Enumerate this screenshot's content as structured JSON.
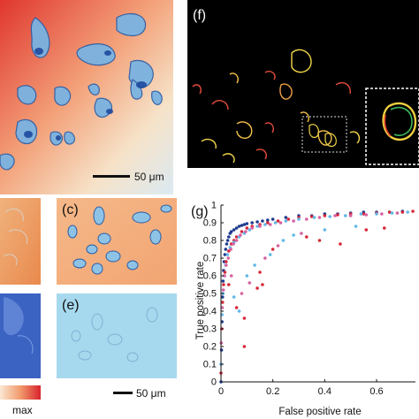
{
  "figure": {
    "panels": {
      "c": "(c)",
      "e": "(e)",
      "f": "(f)",
      "g": "(g)"
    },
    "scale_bar_top": "50 μm",
    "scale_bar_bottom": "50 μm",
    "colorbar_max": "max"
  },
  "chart_data": {
    "type": "scatter",
    "title": "",
    "xlabel": "False positive rate",
    "ylabel": "True positive rate",
    "xlim": [
      0,
      0.75
    ],
    "ylim": [
      0,
      1
    ],
    "x_ticks": [
      "0",
      "0.2",
      "0.4",
      "0.6"
    ],
    "y_ticks": [
      "0",
      "0.1",
      "0.2",
      "0.3",
      "0.4",
      "0.5",
      "0.6",
      "0.7",
      "0.8",
      "0.9",
      "1"
    ],
    "grid": false,
    "series_colors": [
      "#1f3b8f",
      "#d6283a",
      "#62b7e8",
      "#d860a0"
    ],
    "series": [
      {
        "points": [
          [
            0.0,
            0.0
          ],
          [
            0.002,
            0.18
          ],
          [
            0.004,
            0.34
          ],
          [
            0.006,
            0.48
          ],
          [
            0.008,
            0.57
          ],
          [
            0.01,
            0.63
          ],
          [
            0.012,
            0.68
          ],
          [
            0.015,
            0.72
          ],
          [
            0.018,
            0.75
          ],
          [
            0.022,
            0.78
          ],
          [
            0.026,
            0.8
          ],
          [
            0.03,
            0.82
          ],
          [
            0.035,
            0.84
          ],
          [
            0.04,
            0.85
          ],
          [
            0.05,
            0.86
          ],
          [
            0.06,
            0.87
          ],
          [
            0.07,
            0.88
          ],
          [
            0.08,
            0.885
          ],
          [
            0.09,
            0.89
          ],
          [
            0.1,
            0.895
          ],
          [
            0.12,
            0.9
          ],
          [
            0.14,
            0.905
          ],
          [
            0.16,
            0.91
          ],
          [
            0.18,
            0.915
          ],
          [
            0.2,
            0.92
          ],
          [
            0.25,
            0.93
          ],
          [
            0.3,
            0.94
          ],
          [
            0.35,
            0.94
          ],
          [
            0.4,
            0.95
          ],
          [
            0.45,
            0.95
          ],
          [
            0.5,
            0.955
          ],
          [
            0.55,
            0.96
          ],
          [
            0.6,
            0.96
          ],
          [
            0.65,
            0.96
          ],
          [
            0.7,
            0.965
          ]
        ]
      },
      {
        "points": [
          [
            0.0,
            0.05
          ],
          [
            0.003,
            0.3
          ],
          [
            0.006,
            0.45
          ],
          [
            0.01,
            0.55
          ],
          [
            0.015,
            0.62
          ],
          [
            0.02,
            0.68
          ],
          [
            0.03,
            0.74
          ],
          [
            0.04,
            0.78
          ],
          [
            0.05,
            0.8
          ],
          [
            0.06,
            0.82
          ],
          [
            0.08,
            0.85
          ],
          [
            0.1,
            0.87
          ],
          [
            0.12,
            0.88
          ],
          [
            0.15,
            0.89
          ],
          [
            0.18,
            0.9
          ],
          [
            0.22,
            0.91
          ],
          [
            0.26,
            0.92
          ],
          [
            0.3,
            0.93
          ],
          [
            0.35,
            0.935
          ],
          [
            0.4,
            0.94
          ],
          [
            0.45,
            0.945
          ],
          [
            0.5,
            0.95
          ],
          [
            0.55,
            0.95
          ],
          [
            0.6,
            0.955
          ],
          [
            0.65,
            0.96
          ],
          [
            0.7,
            0.96
          ],
          [
            0.74,
            0.965
          ],
          [
            0.03,
            0.55
          ],
          [
            0.06,
            0.42
          ],
          [
            0.09,
            0.36
          ],
          [
            0.14,
            0.53
          ],
          [
            0.16,
            0.55
          ],
          [
            0.09,
            0.2
          ],
          [
            0.2,
            0.75
          ],
          [
            0.33,
            0.82
          ],
          [
            0.38,
            0.8
          ],
          [
            0.46,
            0.78
          ],
          [
            0.56,
            0.86
          ],
          [
            0.63,
            0.87
          ],
          [
            0.15,
            0.62
          ]
        ]
      },
      {
        "points": [
          [
            0.0,
            0.1
          ],
          [
            0.004,
            0.38
          ],
          [
            0.008,
            0.5
          ],
          [
            0.012,
            0.6
          ],
          [
            0.018,
            0.66
          ],
          [
            0.025,
            0.72
          ],
          [
            0.035,
            0.76
          ],
          [
            0.05,
            0.79
          ],
          [
            0.07,
            0.82
          ],
          [
            0.09,
            0.84
          ],
          [
            0.11,
            0.86
          ],
          [
            0.14,
            0.88
          ],
          [
            0.17,
            0.89
          ],
          [
            0.21,
            0.9
          ],
          [
            0.25,
            0.91
          ],
          [
            0.3,
            0.92
          ],
          [
            0.36,
            0.93
          ],
          [
            0.42,
            0.935
          ],
          [
            0.48,
            0.94
          ],
          [
            0.54,
            0.95
          ],
          [
            0.6,
            0.95
          ],
          [
            0.66,
            0.955
          ],
          [
            0.72,
            0.96
          ],
          [
            0.05,
            0.48
          ],
          [
            0.07,
            0.4
          ],
          [
            0.1,
            0.6
          ],
          [
            0.13,
            0.66
          ],
          [
            0.19,
            0.72
          ],
          [
            0.24,
            0.8
          ],
          [
            0.28,
            0.83
          ],
          [
            0.4,
            0.86
          ],
          [
            0.52,
            0.88
          ]
        ]
      },
      {
        "points": [
          [
            0.001,
            0.22
          ],
          [
            0.005,
            0.42
          ],
          [
            0.009,
            0.52
          ],
          [
            0.014,
            0.6
          ],
          [
            0.02,
            0.66
          ],
          [
            0.028,
            0.7
          ],
          [
            0.038,
            0.75
          ],
          [
            0.048,
            0.78
          ],
          [
            0.06,
            0.8
          ],
          [
            0.075,
            0.83
          ],
          [
            0.095,
            0.85
          ],
          [
            0.12,
            0.87
          ],
          [
            0.15,
            0.88
          ],
          [
            0.19,
            0.89
          ],
          [
            0.23,
            0.9
          ],
          [
            0.28,
            0.91
          ],
          [
            0.33,
            0.92
          ],
          [
            0.38,
            0.93
          ],
          [
            0.44,
            0.94
          ],
          [
            0.5,
            0.94
          ],
          [
            0.56,
            0.945
          ],
          [
            0.62,
            0.95
          ],
          [
            0.68,
            0.955
          ],
          [
            0.08,
            0.5
          ],
          [
            0.11,
            0.56
          ],
          [
            0.04,
            0.6
          ],
          [
            0.17,
            0.7
          ],
          [
            0.22,
            0.77
          ],
          [
            0.31,
            0.84
          ]
        ]
      }
    ]
  }
}
